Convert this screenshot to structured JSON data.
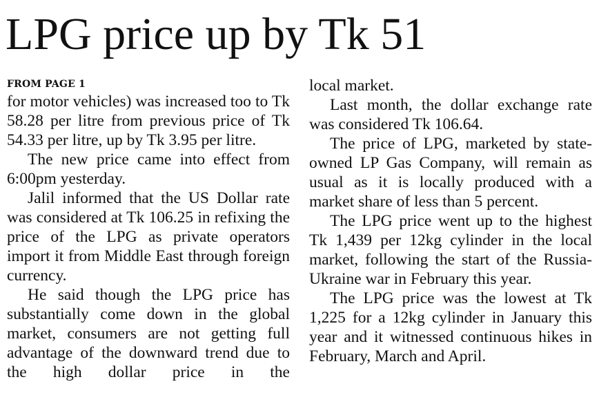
{
  "headline": "LPG price up by Tk 51",
  "kicker": "FROM PAGE 1",
  "left_column": [
    "for motor vehicles) was increased too to Tk 58.28 per litre from previous price of Tk 54.33 per litre, up by Tk 3.95 per litre.",
    "The new price came into effect from 6:00pm yesterday.",
    "Jalil informed that the US Dollar rate was considered at Tk 106.25 in refixing the price of the LPG as private operators import it from Middle East through foreign currency.",
    "He said though the LPG price has substantially come down in the global market, consumers are not getting full advantage of the downward trend due to the high dollar price in the"
  ],
  "right_column": [
    "local market.",
    "Last month, the dollar exchange rate was considered Tk 106.64.",
    "The price of LPG, marketed by state-owned LP Gas Company, will remain as usual as it is locally produced with a market share of less than 5 percent.",
    "The LPG price went up to the highest Tk 1,439 per 12kg cylinder in the local market, following the start of the Russia-Ukraine war in February this year.",
    "The LPG price was the lowest at Tk 1,225 for a 12kg cylinder in January this year and it witnessed continuous hikes in February, March and April."
  ]
}
